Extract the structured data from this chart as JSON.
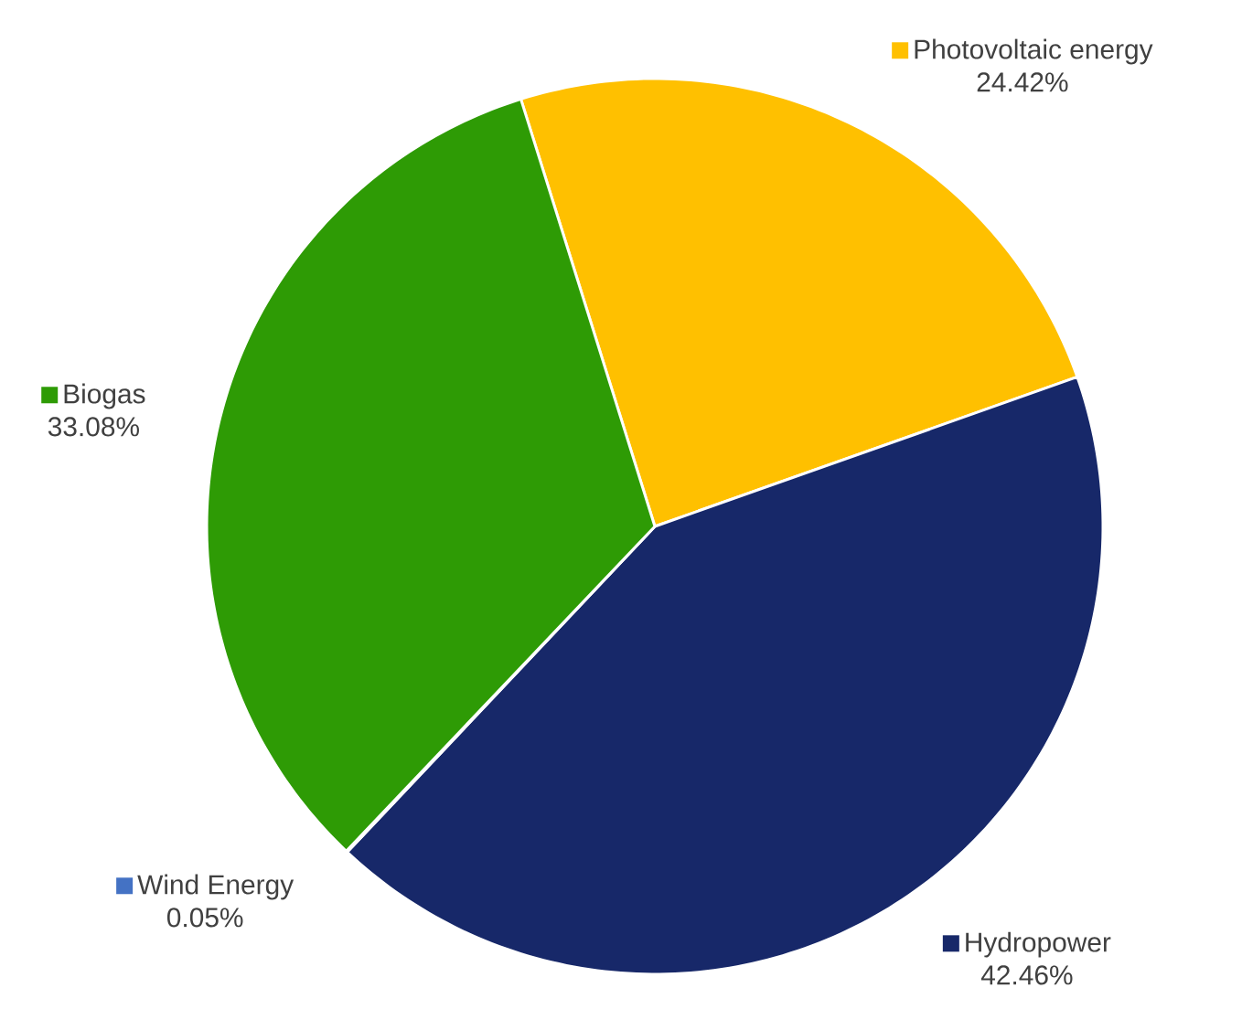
{
  "chart_data": {
    "type": "pie",
    "categories": [
      "Photovoltaic energy",
      "Hydropower",
      "Wind Energy",
      "Biogas"
    ],
    "values": [
      24.42,
      42.46,
      0.05,
      33.08
    ],
    "value_labels": [
      "24.42%",
      "42.46%",
      "0.05%",
      "33.08%"
    ],
    "colors": [
      "#ffc000",
      "#172869",
      "#4472c4",
      "#2e9b05"
    ],
    "legend": "top left"
  }
}
